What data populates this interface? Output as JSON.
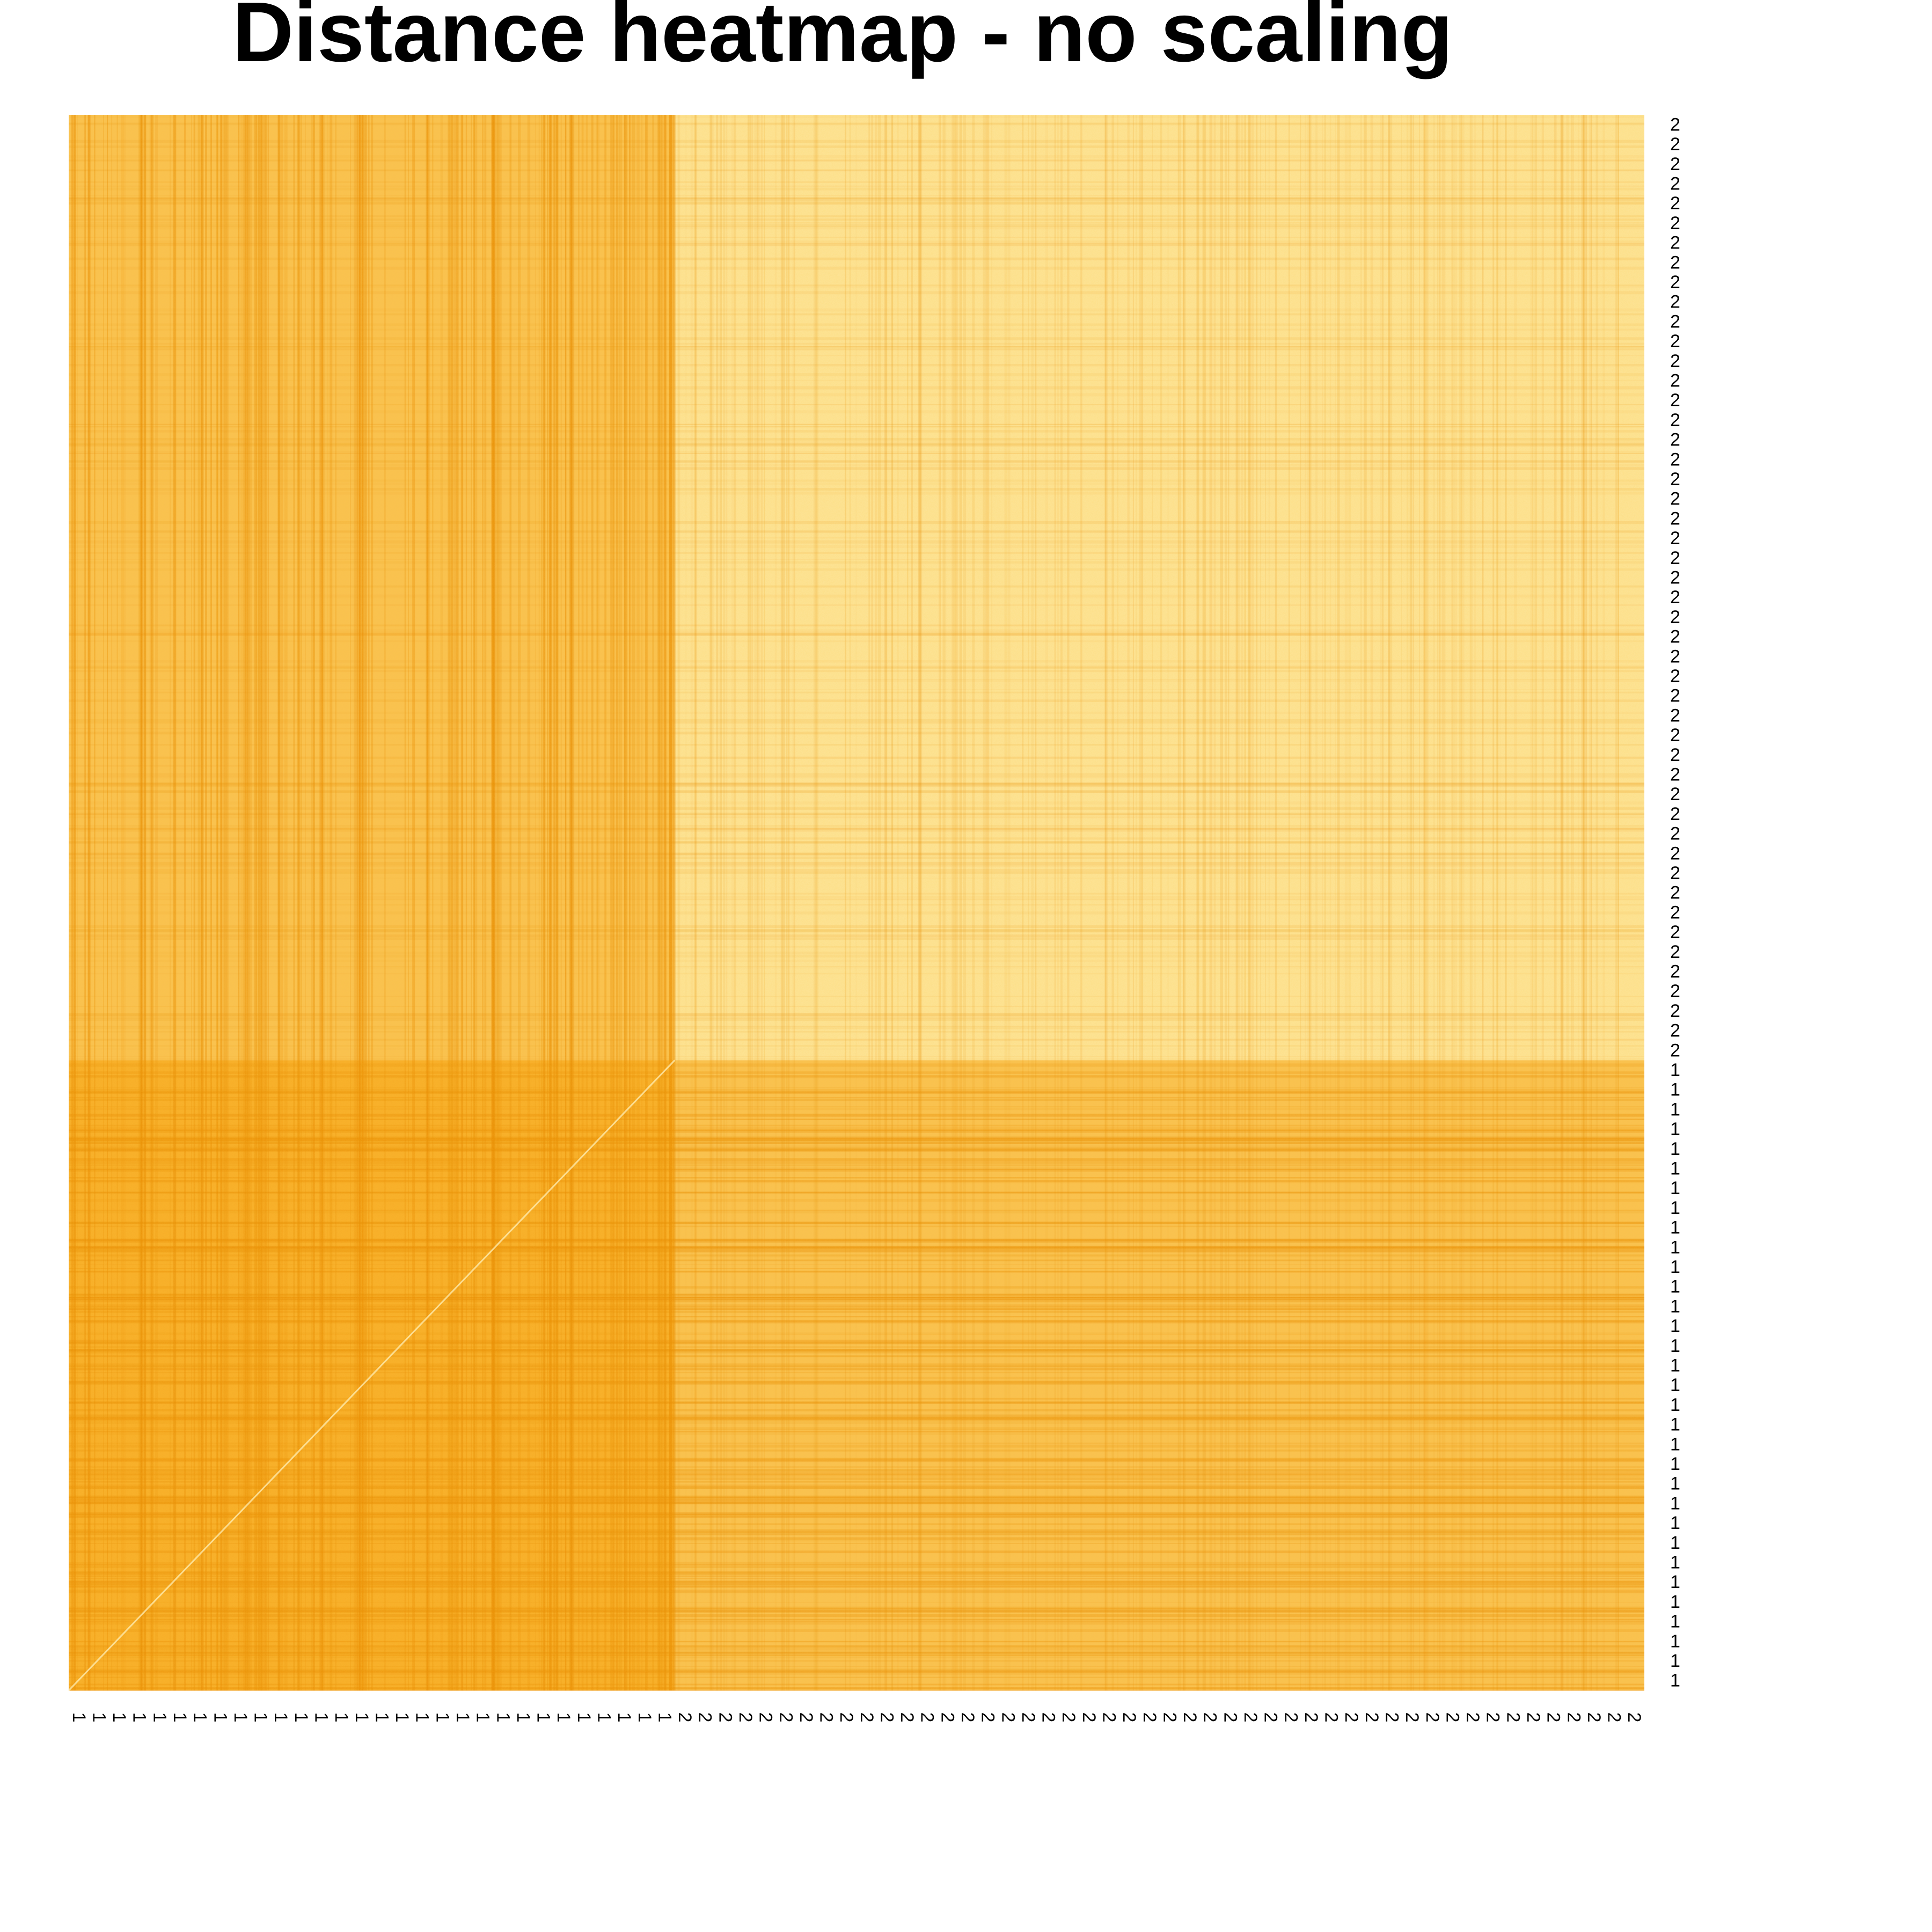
{
  "chart_data": {
    "type": "heatmap",
    "title": "Distance heatmap - no scaling",
    "xlabel": "",
    "ylabel": "",
    "x_tick_labels": [
      "1",
      "1",
      "1",
      "1",
      "1",
      "1",
      "1",
      "1",
      "1",
      "1",
      "1",
      "1",
      "1",
      "1",
      "1",
      "1",
      "1",
      "1",
      "1",
      "1",
      "1",
      "1",
      "1",
      "1",
      "1",
      "1",
      "1",
      "1",
      "1",
      "1",
      "2",
      "2",
      "2",
      "2",
      "2",
      "2",
      "2",
      "2",
      "2",
      "2",
      "2",
      "2",
      "2",
      "2",
      "2",
      "2",
      "2",
      "2",
      "2",
      "2",
      "2",
      "2",
      "2",
      "2",
      "2",
      "2",
      "2",
      "2",
      "2",
      "2",
      "2",
      "2",
      "2",
      "2",
      "2",
      "2",
      "2",
      "2",
      "2",
      "2",
      "2",
      "2",
      "2",
      "2",
      "2",
      "2",
      "2",
      "2"
    ],
    "y_tick_labels_top_to_bottom": [
      "2",
      "2",
      "2",
      "2",
      "2",
      "2",
      "2",
      "2",
      "2",
      "2",
      "2",
      "2",
      "2",
      "2",
      "2",
      "2",
      "2",
      "2",
      "2",
      "2",
      "2",
      "2",
      "2",
      "2",
      "2",
      "2",
      "2",
      "2",
      "2",
      "2",
      "2",
      "2",
      "2",
      "2",
      "2",
      "2",
      "2",
      "2",
      "2",
      "2",
      "2",
      "2",
      "2",
      "2",
      "2",
      "2",
      "2",
      "2",
      "1",
      "1",
      "1",
      "1",
      "1",
      "1",
      "1",
      "1",
      "1",
      "1",
      "1",
      "1",
      "1",
      "1",
      "1",
      "1",
      "1",
      "1",
      "1",
      "1",
      "1",
      "1",
      "1",
      "1",
      "1",
      "1",
      "1",
      "1",
      "1",
      "1",
      "1",
      "1"
    ],
    "groups": [
      "1",
      "2"
    ],
    "block_mean_distance": {
      "1-1": 0.85,
      "1-2": 0.62,
      "2-1": 0.62,
      "2-2": 0.22
    },
    "color_scale": {
      "low": "#fff8c4",
      "high": "#f59e0b"
    },
    "legend": "none",
    "grid": false
  }
}
